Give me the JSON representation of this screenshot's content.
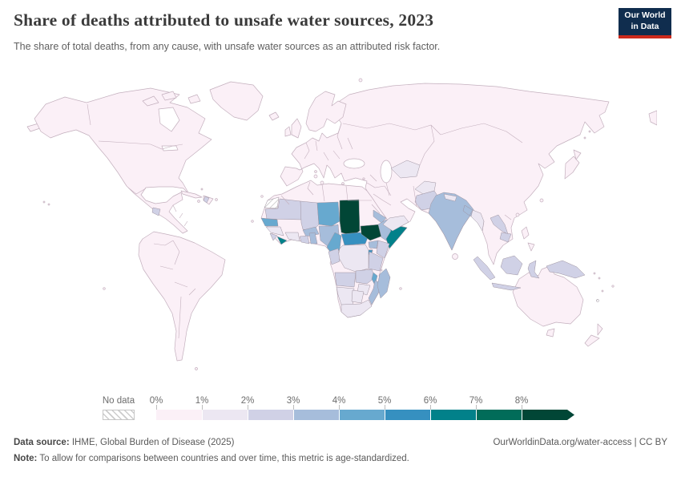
{
  "header": {
    "title": "Share of deaths attributed to unsafe water sources, 2023",
    "subtitle": "The share of total deaths, from any cause, with unsafe water sources as an attributed risk factor.",
    "logo": {
      "line1": "Our World",
      "line2": "in Data",
      "bg_color": "#102d4e",
      "accent_color": "#cc2a1c"
    }
  },
  "legend": {
    "no_data_label": "No data",
    "boundary_labels": [
      "0%",
      "1%",
      "2%",
      "3%",
      "4%",
      "5%",
      "6%",
      "7%",
      "8%"
    ],
    "bins": [
      {
        "range": "0–1%",
        "color": "#fbf0f7"
      },
      {
        "range": "1–2%",
        "color": "#ece7f2"
      },
      {
        "range": "2–3%",
        "color": "#d0d1e6"
      },
      {
        "range": "3–4%",
        "color": "#a6bddb"
      },
      {
        "range": "4–5%",
        "color": "#67a9cf"
      },
      {
        "range": "5–6%",
        "color": "#3690c0"
      },
      {
        "range": "6–7%",
        "color": "#02818a"
      },
      {
        "range": "7–8%",
        "color": "#016c59"
      },
      {
        "range": "8%+",
        "color": "#014636"
      }
    ]
  },
  "map": {
    "default_fill": "#fbf0f7",
    "border_color": "#c3afbd",
    "ocean_color": "#ffffff",
    "no_data_stripe_color": "#bcbcbc",
    "regions": [
      {
        "id": "western-sahara",
        "name": "Western Sahara",
        "value": "No data",
        "color": "no-data"
      },
      {
        "id": "mauritania",
        "name": "Mauritania",
        "value": "2–3%",
        "color": "#d0d1e6"
      },
      {
        "id": "senegal",
        "name": "Senegal",
        "value": "4–5%",
        "color": "#67a9cf"
      },
      {
        "id": "guinea",
        "name": "Guinea",
        "value": "1–2%",
        "color": "#ece7f2"
      },
      {
        "id": "sierra-leone",
        "name": "Sierra Leone",
        "value": "2–3%",
        "color": "#d0d1e6"
      },
      {
        "id": "liberia",
        "name": "Liberia",
        "value": "6–7%",
        "color": "#02818a"
      },
      {
        "id": "cote-divoire",
        "name": "Côte d'Ivoire",
        "value": "1–2%",
        "color": "#ece7f2"
      },
      {
        "id": "mali",
        "name": "Mali",
        "value": "2–3%",
        "color": "#d0d1e6"
      },
      {
        "id": "burkina-faso",
        "name": "Burkina Faso",
        "value": "3–4%",
        "color": "#a6bddb"
      },
      {
        "id": "ghana",
        "name": "Ghana",
        "value": "2–3%",
        "color": "#d0d1e6"
      },
      {
        "id": "benin-togo",
        "name": "Benin & Togo",
        "value": "3–4%",
        "color": "#a6bddb"
      },
      {
        "id": "niger",
        "name": "Niger",
        "value": "4–5%",
        "color": "#67a9cf"
      },
      {
        "id": "nigeria",
        "name": "Nigeria",
        "value": "3–4%",
        "color": "#a6bddb"
      },
      {
        "id": "chad",
        "name": "Chad",
        "value": "8%+",
        "color": "#014636"
      },
      {
        "id": "cameroon",
        "name": "Cameroon",
        "value": "4–5%",
        "color": "#67a9cf"
      },
      {
        "id": "central-african-republic",
        "name": "Central African Republic",
        "value": "5–6%",
        "color": "#3690c0"
      },
      {
        "id": "south-sudan",
        "name": "South Sudan",
        "value": "8%+",
        "color": "#014636"
      },
      {
        "id": "eritrea",
        "name": "Eritrea",
        "value": "3–4%",
        "color": "#a6bddb"
      },
      {
        "id": "ethiopia",
        "name": "Ethiopia",
        "value": "3–4%",
        "color": "#a6bddb"
      },
      {
        "id": "somalia",
        "name": "Somalia",
        "value": "6–7%",
        "color": "#02818a"
      },
      {
        "id": "uganda",
        "name": "Uganda",
        "value": "3–4%",
        "color": "#a6bddb"
      },
      {
        "id": "kenya",
        "name": "Kenya",
        "value": "2–3%",
        "color": "#d0d1e6"
      },
      {
        "id": "rwanda-burundi",
        "name": "Rwanda & Burundi",
        "value": "5–6%",
        "color": "#3690c0"
      },
      {
        "id": "tanzania",
        "name": "Tanzania",
        "value": "2–3%",
        "color": "#d0d1e6"
      },
      {
        "id": "dr-congo",
        "name": "Democratic Republic of Congo",
        "value": "1–2%",
        "color": "#ece7f2"
      },
      {
        "id": "congo-gabon",
        "name": "Congo & Gabon",
        "value": "2–3%",
        "color": "#d0d1e6"
      },
      {
        "id": "angola",
        "name": "Angola",
        "value": "2–3%",
        "color": "#d0d1e6"
      },
      {
        "id": "zambia",
        "name": "Zambia",
        "value": "2–3%",
        "color": "#d0d1e6"
      },
      {
        "id": "malawi",
        "name": "Malawi",
        "value": "4–5%",
        "color": "#67a9cf"
      },
      {
        "id": "mozambique",
        "name": "Mozambique",
        "value": "3–4%",
        "color": "#a6bddb"
      },
      {
        "id": "zimbabwe",
        "name": "Zimbabwe",
        "value": "1–2%",
        "color": "#ece7f2"
      },
      {
        "id": "namibia",
        "name": "Namibia",
        "value": "1–2%",
        "color": "#ece7f2"
      },
      {
        "id": "botswana",
        "name": "Botswana",
        "value": "1–2%",
        "color": "#ece7f2"
      },
      {
        "id": "south-africa",
        "name": "South Africa",
        "value": "1–2%",
        "color": "#ece7f2"
      },
      {
        "id": "madagascar",
        "name": "Madagascar",
        "value": "3–4%",
        "color": "#a6bddb"
      },
      {
        "id": "yemen",
        "name": "Yemen",
        "value": "1–2%",
        "color": "#ece7f2"
      },
      {
        "id": "turkmenistan-uzbekistan",
        "name": "Turkmenistan & Uzbekistan",
        "value": "1–2%",
        "color": "#ece7f2"
      },
      {
        "id": "afghanistan",
        "name": "Afghanistan",
        "value": "1–2%",
        "color": "#ece7f2"
      },
      {
        "id": "pakistan",
        "name": "Pakistan",
        "value": "2–3%",
        "color": "#d0d1e6"
      },
      {
        "id": "india",
        "name": "India",
        "value": "3–4%",
        "color": "#a6bddb"
      },
      {
        "id": "nepal",
        "name": "Nepal",
        "value": "1–2%",
        "color": "#ece7f2"
      },
      {
        "id": "bangladesh",
        "name": "Bangladesh",
        "value": "3–4%",
        "color": "#a6bddb"
      },
      {
        "id": "myanmar",
        "name": "Myanmar",
        "value": "1–2%",
        "color": "#ece7f2"
      },
      {
        "id": "laos",
        "name": "Laos",
        "value": "2–3%",
        "color": "#d0d1e6"
      },
      {
        "id": "cambodia",
        "name": "Cambodia",
        "value": "2–3%",
        "color": "#d0d1e6"
      },
      {
        "id": "indonesia-sumatra",
        "name": "Indonesia (Sumatra)",
        "value": "2–3%",
        "color": "#d0d1e6"
      },
      {
        "id": "indonesia-java",
        "name": "Indonesia (Java)",
        "value": "2–3%",
        "color": "#d0d1e6"
      },
      {
        "id": "indonesia-borneo",
        "name": "Indonesia (Borneo)",
        "value": "2–3%",
        "color": "#d0d1e6"
      },
      {
        "id": "indonesia-sulawesi",
        "name": "Indonesia (Sulawesi)",
        "value": "2–3%",
        "color": "#d0d1e6"
      },
      {
        "id": "new-guinea",
        "name": "New Guinea",
        "value": "2–3%",
        "color": "#d0d1e6"
      },
      {
        "id": "guatemala",
        "name": "Guatemala",
        "value": "2–3%",
        "color": "#d0d1e6"
      },
      {
        "id": "haiti",
        "name": "Haiti",
        "value": "2–3%",
        "color": "#d0d1e6"
      },
      {
        "id": "new-caledonia",
        "name": "New Caledonia",
        "value": "No data",
        "color": "no-data"
      }
    ]
  },
  "footer": {
    "datasource_label": "Data source:",
    "datasource_text": " IHME, Global Burden of Disease (2025)",
    "link_text": "OurWorldinData.org/water-access | CC BY",
    "note_label": "Note:",
    "note_text": " To allow for comparisons between countries and over time, this metric is age-standardized."
  },
  "chart_data": {
    "type": "heatmap",
    "variant": "choropleth-world-map",
    "title": "Share of deaths attributed to unsafe water sources, 2023",
    "unit": "%",
    "legend_bins": [
      {
        "label": "No data",
        "color": "hatched"
      },
      {
        "range": [
          0,
          1
        ],
        "color": "#fbf0f7"
      },
      {
        "range": [
          1,
          2
        ],
        "color": "#ece7f2"
      },
      {
        "range": [
          2,
          3
        ],
        "color": "#d0d1e6"
      },
      {
        "range": [
          3,
          4
        ],
        "color": "#a6bddb"
      },
      {
        "range": [
          4,
          5
        ],
        "color": "#67a9cf"
      },
      {
        "range": [
          5,
          6
        ],
        "color": "#3690c0"
      },
      {
        "range": [
          6,
          7
        ],
        "color": "#02818a"
      },
      {
        "range": [
          7,
          8
        ],
        "color": "#016c59"
      },
      {
        "range": [
          8,
          null
        ],
        "color": "#014636"
      }
    ],
    "default_bin_for_unlisted_countries": "0–1%",
    "countries": [
      {
        "name": "Chad",
        "bin": "8%+"
      },
      {
        "name": "South Sudan",
        "bin": "8%+"
      },
      {
        "name": "Somalia",
        "bin": "6–7%"
      },
      {
        "name": "Liberia",
        "bin": "6–7%"
      },
      {
        "name": "Central African Republic",
        "bin": "5–6%"
      },
      {
        "name": "Rwanda & Burundi",
        "bin": "5–6%"
      },
      {
        "name": "Niger",
        "bin": "4–5%"
      },
      {
        "name": "Cameroon",
        "bin": "4–5%"
      },
      {
        "name": "Senegal",
        "bin": "4–5%"
      },
      {
        "name": "Malawi",
        "bin": "4–5%"
      },
      {
        "name": "Nigeria",
        "bin": "3–4%"
      },
      {
        "name": "Burkina Faso",
        "bin": "3–4%"
      },
      {
        "name": "Ethiopia",
        "bin": "3–4%"
      },
      {
        "name": "Eritrea",
        "bin": "3–4%"
      },
      {
        "name": "Uganda",
        "bin": "3–4%"
      },
      {
        "name": "Mozambique",
        "bin": "3–4%"
      },
      {
        "name": "Madagascar",
        "bin": "3–4%"
      },
      {
        "name": "India",
        "bin": "3–4%"
      },
      {
        "name": "Bangladesh",
        "bin": "3–4%"
      },
      {
        "name": "Benin & Togo",
        "bin": "3–4%"
      },
      {
        "name": "Mauritania",
        "bin": "2–3%"
      },
      {
        "name": "Mali",
        "bin": "2–3%"
      },
      {
        "name": "Sierra Leone",
        "bin": "2–3%"
      },
      {
        "name": "Ghana",
        "bin": "2–3%"
      },
      {
        "name": "Kenya",
        "bin": "2–3%"
      },
      {
        "name": "Tanzania",
        "bin": "2–3%"
      },
      {
        "name": "Congo & Gabon",
        "bin": "2–3%"
      },
      {
        "name": "Angola",
        "bin": "2–3%"
      },
      {
        "name": "Zambia",
        "bin": "2–3%"
      },
      {
        "name": "Pakistan",
        "bin": "2–3%"
      },
      {
        "name": "Laos",
        "bin": "2–3%"
      },
      {
        "name": "Cambodia",
        "bin": "2–3%"
      },
      {
        "name": "Indonesia",
        "bin": "2–3%"
      },
      {
        "name": "New Guinea",
        "bin": "2–3%"
      },
      {
        "name": "Guatemala",
        "bin": "2–3%"
      },
      {
        "name": "Haiti",
        "bin": "2–3%"
      },
      {
        "name": "Guinea",
        "bin": "1–2%"
      },
      {
        "name": "Côte d'Ivoire",
        "bin": "1–2%"
      },
      {
        "name": "DR Congo",
        "bin": "1–2%"
      },
      {
        "name": "Zimbabwe",
        "bin": "1–2%"
      },
      {
        "name": "Namibia",
        "bin": "1–2%"
      },
      {
        "name": "Botswana",
        "bin": "1–2%"
      },
      {
        "name": "South Africa",
        "bin": "1–2%"
      },
      {
        "name": "Yemen",
        "bin": "1–2%"
      },
      {
        "name": "Afghanistan",
        "bin": "1–2%"
      },
      {
        "name": "Turkmenistan & Uzbekistan",
        "bin": "1–2%"
      },
      {
        "name": "Nepal",
        "bin": "1–2%"
      },
      {
        "name": "Myanmar",
        "bin": "1–2%"
      },
      {
        "name": "Western Sahara",
        "bin": "No data"
      },
      {
        "name": "New Caledonia",
        "bin": "No data"
      }
    ]
  }
}
